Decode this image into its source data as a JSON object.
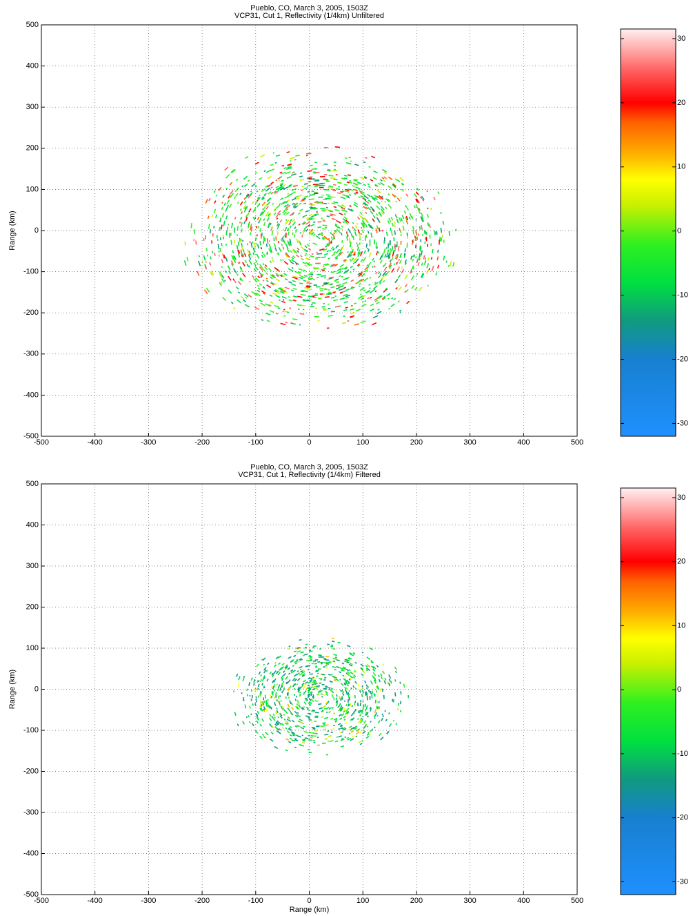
{
  "chart_data": [
    {
      "type": "radar-ppi",
      "title": "Pueblo, CO, March 3, 2005, 1503Z",
      "subtitle": "VCP31, Cut 1, Reflectivity (1/4km) Unfiltered",
      "ylabel": "Range (km)",
      "xlim": [
        -500,
        500
      ],
      "ylim": [
        -500,
        500
      ],
      "xticks": [
        -500,
        -400,
        -300,
        -200,
        -100,
        0,
        100,
        200,
        300,
        400,
        500
      ],
      "yticks": [
        -500,
        -400,
        -300,
        -200,
        -100,
        0,
        100,
        200,
        300,
        400,
        500
      ],
      "grid": true,
      "colorbar": {
        "lim": [
          -32,
          31.5
        ],
        "ticks": [
          -30,
          -20,
          -10,
          0,
          10,
          20,
          30
        ],
        "colormap": [
          {
            "value": -32,
            "color": "#1e90ff"
          },
          {
            "value": -20,
            "color": "#1880d0"
          },
          {
            "value": -14,
            "color": "#109a80"
          },
          {
            "value": -8,
            "color": "#00e040"
          },
          {
            "value": -2,
            "color": "#30f020"
          },
          {
            "value": 4,
            "color": "#c8f000"
          },
          {
            "value": 8,
            "color": "#ffff00"
          },
          {
            "value": 12,
            "color": "#ffb000"
          },
          {
            "value": 17,
            "color": "#ff6000"
          },
          {
            "value": 20,
            "color": "#ff0000"
          },
          {
            "value": 25,
            "color": "#ff6060"
          },
          {
            "value": 31.5,
            "color": "#fff0f0"
          }
        ]
      }
    },
    {
      "type": "radar-ppi",
      "title": "Pueblo, CO, March 3, 2005, 1503Z",
      "subtitle": "VCP31, Cut 1, Reflectivity (1/4km) Filtered",
      "xlabel": "Range (km)",
      "ylabel": "Range (km)",
      "xlim": [
        -500,
        500
      ],
      "ylim": [
        -500,
        500
      ],
      "xticks": [
        -500,
        -400,
        -300,
        -200,
        -100,
        0,
        100,
        200,
        300,
        400,
        500
      ],
      "yticks": [
        -500,
        -400,
        -300,
        -200,
        -100,
        0,
        100,
        200,
        300,
        400,
        500
      ],
      "grid": true,
      "colorbar": {
        "lim": [
          -32,
          31.5
        ],
        "ticks": [
          -30,
          -20,
          -10,
          0,
          10,
          20,
          30
        ],
        "colormap": [
          {
            "value": -32,
            "color": "#1e90ff"
          },
          {
            "value": -20,
            "color": "#1880d0"
          },
          {
            "value": -14,
            "color": "#109a80"
          },
          {
            "value": -8,
            "color": "#00e040"
          },
          {
            "value": -2,
            "color": "#30f020"
          },
          {
            "value": 4,
            "color": "#c8f000"
          },
          {
            "value": 8,
            "color": "#ffff00"
          },
          {
            "value": 12,
            "color": "#ffb000"
          },
          {
            "value": 17,
            "color": "#ff6000"
          },
          {
            "value": 20,
            "color": "#ff0000"
          },
          {
            "value": 25,
            "color": "#ff6060"
          },
          {
            "value": 31.5,
            "color": "#fff0f0"
          }
        ]
      }
    }
  ]
}
